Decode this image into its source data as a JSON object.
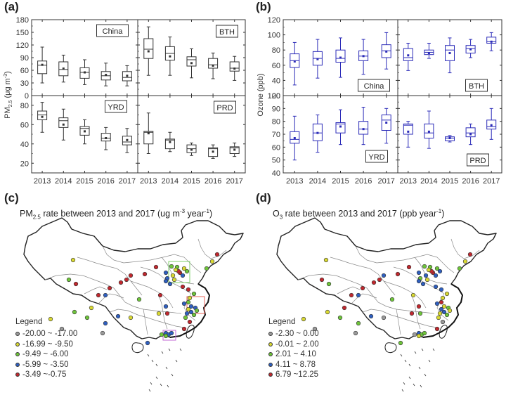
{
  "panels": {
    "a": {
      "label": "(a)"
    },
    "b": {
      "label": "(b)"
    },
    "c": {
      "label": "(c)",
      "title_main": "PM",
      "title_sub": "2.5",
      "title_rest": " rate between 2013 and 2017 (ug m",
      "title_sup": "-3",
      "title_rest2": " year",
      "title_sup2": "-1",
      "title_end": ")"
    },
    "d": {
      "label": "(d)",
      "title_main": "O",
      "title_sub": "3",
      "title_rest": " rate between 2013 and 2017 (ppb year",
      "title_sup": "-1",
      "title_end": ")"
    }
  },
  "chart_data": [
    {
      "id": "a",
      "type": "box",
      "ylabel": "PM2.5 (μg m-3)",
      "color": "#333333",
      "categories": [
        "2013",
        "2014",
        "2015",
        "2016",
        "2017"
      ],
      "subplots": [
        {
          "name": "China",
          "ylim": [
            0,
            180
          ],
          "yticks": [
            0,
            30,
            60,
            90,
            120,
            150,
            180
          ],
          "boxes": [
            {
              "min": 30,
              "q1": 52,
              "median": 72,
              "q3": 82,
              "max": 115,
              "mean": 73
            },
            {
              "min": 32,
              "q1": 47,
              "median": 62,
              "q3": 80,
              "max": 96,
              "mean": 64
            },
            {
              "min": 26,
              "q1": 41,
              "median": 55,
              "q3": 66,
              "max": 85,
              "mean": 55
            },
            {
              "min": 23,
              "q1": 37,
              "median": 47,
              "q3": 57,
              "max": 77,
              "mean": 49
            },
            {
              "min": 23,
              "q1": 35,
              "median": 43,
              "q3": 57,
              "max": 71,
              "mean": 47
            }
          ]
        },
        {
          "name": "BTH",
          "ylim": [
            0,
            180
          ],
          "yticks": [
            0,
            30,
            60,
            90,
            120,
            150,
            180
          ],
          "boxes": [
            {
              "min": 48,
              "q1": 88,
              "median": 110,
              "q3": 135,
              "max": 163,
              "mean": 105
            },
            {
              "min": 48,
              "q1": 84,
              "median": 100,
              "q3": 116,
              "max": 139,
              "mean": 93
            },
            {
              "min": 42,
              "q1": 70,
              "median": 85,
              "q3": 92,
              "max": 111,
              "mean": 77
            },
            {
              "min": 40,
              "q1": 65,
              "median": 73,
              "q3": 88,
              "max": 101,
              "mean": 71
            },
            {
              "min": 36,
              "q1": 58,
              "median": 65,
              "q3": 80,
              "max": 93,
              "mean": 64
            }
          ]
        },
        {
          "name": "YRD",
          "ylim": [
            10,
            90
          ],
          "yticks": [
            20,
            40,
            60,
            80
          ],
          "boxes": [
            {
              "min": 52,
              "q1": 65,
              "median": 70,
              "q3": 74,
              "max": 83,
              "mean": 68
            },
            {
              "min": 44,
              "q1": 57,
              "median": 64,
              "q3": 67,
              "max": 76,
              "mean": 60
            },
            {
              "min": 40,
              "q1": 49,
              "median": 56,
              "q3": 58,
              "max": 65,
              "mean": 53
            },
            {
              "min": 34,
              "q1": 43,
              "median": 46,
              "q3": 51,
              "max": 57,
              "mean": 46
            },
            {
              "min": 31,
              "q1": 39,
              "median": 42,
              "q3": 48,
              "max": 56,
              "mean": 44
            }
          ]
        },
        {
          "name": "PRD",
          "ylim": [
            10,
            90
          ],
          "yticks": [
            20,
            40,
            60,
            80
          ],
          "boxes": [
            {
              "min": 30,
              "q1": 40,
              "median": 52,
              "q3": 53,
              "max": 72,
              "mean": 51
            },
            {
              "min": 32,
              "q1": 35,
              "median": 44,
              "q3": 45,
              "max": 52,
              "mean": 42
            },
            {
              "min": 28,
              "q1": 31,
              "median": 35,
              "q3": 39,
              "max": 41,
              "mean": 34
            },
            {
              "min": 25,
              "q1": 27,
              "median": 35,
              "q3": 36,
              "max": 39,
              "mean": 32
            },
            {
              "min": 27,
              "q1": 30,
              "median": 36,
              "q3": 37,
              "max": 41,
              "mean": 34
            }
          ]
        }
      ]
    },
    {
      "id": "b",
      "type": "box",
      "ylabel": "Ozone (ppb)",
      "color": "#2b2bb8",
      "categories": [
        "2013",
        "2014",
        "2015",
        "2016",
        "2017"
      ],
      "subplots": [
        {
          "name": "China",
          "ylim": [
            20,
            120
          ],
          "yticks": [
            20,
            40,
            60,
            80,
            100,
            120
          ],
          "boxes": [
            {
              "min": 34,
              "q1": 57,
              "median": 66,
              "q3": 75,
              "max": 90,
              "mean": 65
            },
            {
              "min": 43,
              "q1": 60,
              "median": 69,
              "q3": 78,
              "max": 94,
              "mean": 68
            },
            {
              "min": 44,
              "q1": 64,
              "median": 69,
              "q3": 80,
              "max": 96,
              "mean": 70
            },
            {
              "min": 48,
              "q1": 66,
              "median": 72,
              "q3": 79,
              "max": 94,
              "mean": 72
            },
            {
              "min": 55,
              "q1": 70,
              "median": 79,
              "q3": 87,
              "max": 103,
              "mean": 78
            }
          ]
        },
        {
          "name": "BTH",
          "ylim": [
            20,
            120
          ],
          "yticks": [
            20,
            40,
            60,
            80,
            100,
            120
          ],
          "boxes": [
            {
              "min": 53,
              "q1": 66,
              "median": 70,
              "q3": 82,
              "max": 89,
              "mean": 73
            },
            {
              "min": 69,
              "q1": 74,
              "median": 77,
              "q3": 80,
              "max": 89,
              "mean": 76
            },
            {
              "min": 50,
              "q1": 66,
              "median": 80,
              "q3": 86,
              "max": 96,
              "mean": 76
            },
            {
              "min": 70,
              "q1": 76,
              "median": 82,
              "q3": 86,
              "max": 94,
              "mean": 81
            },
            {
              "min": 79,
              "q1": 89,
              "median": 91,
              "q3": 97,
              "max": 103,
              "mean": 91
            }
          ]
        },
        {
          "name": "YRD",
          "ylim": [
            40,
            100
          ],
          "yticks": [
            40,
            50,
            60,
            70,
            80,
            90,
            100
          ],
          "boxes": [
            {
              "min": 50,
              "q1": 63,
              "median": 66,
              "q3": 72,
              "max": 84,
              "mean": 67
            },
            {
              "min": 56,
              "q1": 65,
              "median": 71,
              "q3": 78,
              "max": 85,
              "mean": 71
            },
            {
              "min": 62,
              "q1": 71,
              "median": 78,
              "q3": 79,
              "max": 89,
              "mean": 76
            },
            {
              "min": 62,
              "q1": 70,
              "median": 74,
              "q3": 80,
              "max": 91,
              "mean": 74
            },
            {
              "min": 63,
              "q1": 73,
              "median": 81,
              "q3": 85,
              "max": 90,
              "mean": 79
            }
          ]
        },
        {
          "name": "PRD",
          "ylim": [
            40,
            100
          ],
          "yticks": [
            40,
            50,
            60,
            70,
            80,
            90,
            100
          ],
          "boxes": [
            {
              "min": 60,
              "q1": 70,
              "median": 77,
              "q3": 78,
              "max": 80,
              "mean": 72
            },
            {
              "min": 59,
              "q1": 67,
              "median": 71,
              "q3": 78,
              "max": 88,
              "mean": 72
            },
            {
              "min": 64,
              "q1": 65,
              "median": 67,
              "q3": 68,
              "max": 69,
              "mean": 67
            },
            {
              "min": 62,
              "q1": 68,
              "median": 71,
              "q3": 75,
              "max": 78,
              "mean": 70
            },
            {
              "min": 66,
              "q1": 74,
              "median": 76,
              "q3": 81,
              "max": 90,
              "mean": 77
            }
          ]
        }
      ]
    },
    {
      "id": "c",
      "type": "map",
      "title": "PM2.5 rate between 2013 and 2017 (ug m-3 year-1)",
      "legend_title": "Legend",
      "legend": [
        {
          "label": "-20.00 ~ -17.00",
          "color": "#9a9a9a"
        },
        {
          "label": "-16.99 ~ -9.50",
          "color": "#d8d832"
        },
        {
          "label": "-9.49 ~ -6.00",
          "color": "#6ec43a"
        },
        {
          "label": "-5.99 ~ -3.50",
          "color": "#2f5fbf"
        },
        {
          "label": "-3.49 ~-0.75",
          "color": "#c0282e"
        }
      ],
      "region_boxes": [
        {
          "name": "BTH",
          "color": "#7ccf6a"
        },
        {
          "name": "YRD",
          "color": "#e8635a"
        },
        {
          "name": "PRD",
          "color": "#c36ad6"
        }
      ]
    },
    {
      "id": "d",
      "type": "map",
      "title": "O3 rate between 2013 and 2017 (ppb year-1)",
      "legend_title": "Legend",
      "legend": [
        {
          "label": "-2.30 ~ 0.00",
          "color": "#9a9a9a"
        },
        {
          "label": "-0.01 ~ 2.00",
          "color": "#d8d832"
        },
        {
          "label": "2.01 ~ 4.10",
          "color": "#6ec43a"
        },
        {
          "label": "4.11 ~ 8.78",
          "color": "#2f5fbf"
        },
        {
          "label": "6.79 ~12.25",
          "color": "#c0282e"
        }
      ]
    }
  ]
}
